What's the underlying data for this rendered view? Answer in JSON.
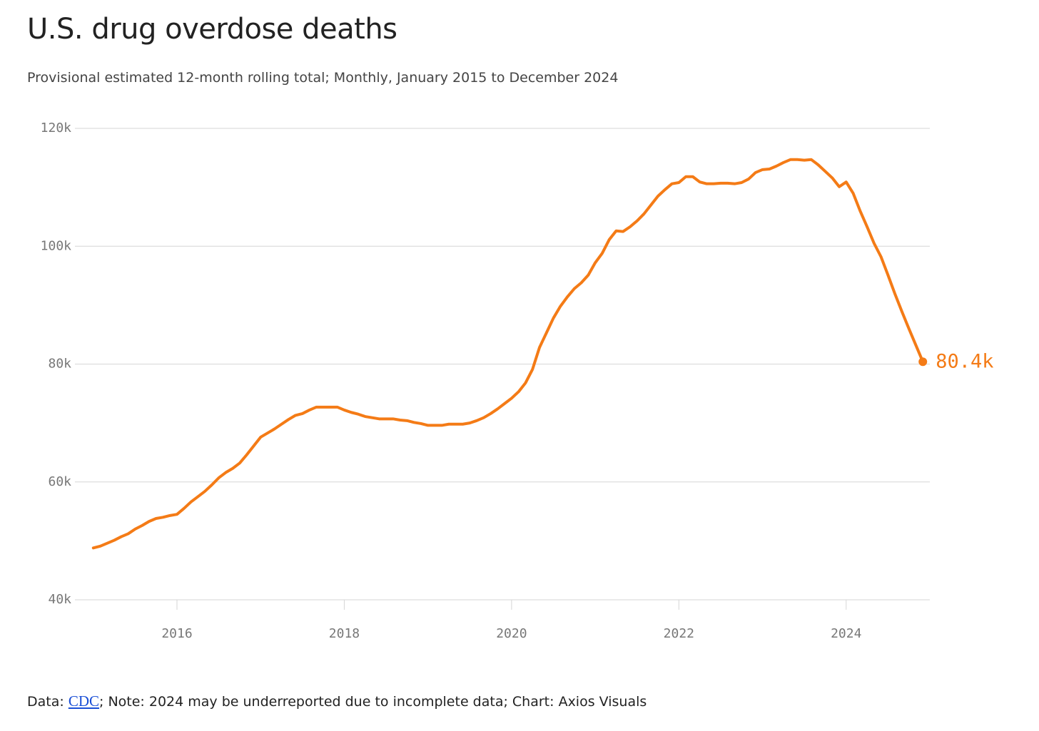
{
  "chart_data": {
    "type": "line",
    "title": "U.S. drug overdose deaths",
    "subtitle": "Provisional estimated 12-month rolling total; Monthly, January 2015 to December 2024",
    "x": [
      "2015-01",
      "2015-02",
      "2015-03",
      "2015-04",
      "2015-05",
      "2015-06",
      "2015-07",
      "2015-08",
      "2015-09",
      "2015-10",
      "2015-11",
      "2015-12",
      "2016-01",
      "2016-02",
      "2016-03",
      "2016-04",
      "2016-05",
      "2016-06",
      "2016-07",
      "2016-08",
      "2016-09",
      "2016-10",
      "2016-11",
      "2016-12",
      "2017-01",
      "2017-02",
      "2017-03",
      "2017-04",
      "2017-05",
      "2017-06",
      "2017-07",
      "2017-08",
      "2017-09",
      "2017-10",
      "2017-11",
      "2017-12",
      "2018-01",
      "2018-02",
      "2018-03",
      "2018-04",
      "2018-05",
      "2018-06",
      "2018-07",
      "2018-08",
      "2018-09",
      "2018-10",
      "2018-11",
      "2018-12",
      "2019-01",
      "2019-02",
      "2019-03",
      "2019-04",
      "2019-05",
      "2019-06",
      "2019-07",
      "2019-08",
      "2019-09",
      "2019-10",
      "2019-11",
      "2019-12",
      "2020-01",
      "2020-02",
      "2020-03",
      "2020-04",
      "2020-05",
      "2020-06",
      "2020-07",
      "2020-08",
      "2020-09",
      "2020-10",
      "2020-11",
      "2020-12",
      "2021-01",
      "2021-02",
      "2021-03",
      "2021-04",
      "2021-05",
      "2021-06",
      "2021-07",
      "2021-08",
      "2021-09",
      "2021-10",
      "2021-11",
      "2021-12",
      "2022-01",
      "2022-02",
      "2022-03",
      "2022-04",
      "2022-05",
      "2022-06",
      "2022-07",
      "2022-08",
      "2022-09",
      "2022-10",
      "2022-11",
      "2022-12",
      "2023-01",
      "2023-02",
      "2023-03",
      "2023-04",
      "2023-05",
      "2023-06",
      "2023-07",
      "2023-08",
      "2023-09",
      "2023-10",
      "2023-11",
      "2023-12",
      "2024-01",
      "2024-02",
      "2024-03",
      "2024-04",
      "2024-05",
      "2024-06",
      "2024-07",
      "2024-08",
      "2024-09",
      "2024-10",
      "2024-11",
      "2024-12"
    ],
    "values": [
      48.8,
      49.1,
      49.6,
      50.1,
      50.7,
      51.2,
      52.0,
      52.6,
      53.3,
      53.8,
      54.0,
      54.3,
      54.5,
      55.5,
      56.6,
      57.5,
      58.4,
      59.5,
      60.7,
      61.6,
      62.3,
      63.2,
      64.6,
      66.1,
      67.6,
      68.3,
      69.0,
      69.8,
      70.6,
      71.3,
      71.6,
      72.2,
      72.7,
      72.7,
      72.7,
      72.7,
      72.2,
      71.8,
      71.5,
      71.1,
      70.9,
      70.7,
      70.7,
      70.7,
      70.5,
      70.4,
      70.1,
      69.9,
      69.6,
      69.6,
      69.6,
      69.8,
      69.8,
      69.8,
      70.0,
      70.4,
      70.9,
      71.6,
      72.4,
      73.3,
      74.2,
      75.3,
      76.8,
      79.1,
      82.8,
      85.3,
      87.8,
      89.8,
      91.4,
      92.8,
      93.8,
      95.1,
      97.2,
      98.8,
      101.1,
      102.6,
      102.5,
      103.3,
      104.3,
      105.5,
      107.0,
      108.5,
      109.6,
      110.6,
      110.8,
      111.8,
      111.8,
      110.9,
      110.6,
      110.6,
      110.7,
      110.7,
      110.6,
      110.8,
      111.4,
      112.5,
      113.0,
      113.1,
      113.6,
      114.2,
      114.7,
      114.7,
      114.6,
      114.7,
      113.8,
      112.7,
      111.6,
      110.1,
      110.9,
      109.0,
      106.0,
      103.3,
      100.5,
      98.2,
      95.1,
      91.9,
      88.9,
      86.0,
      83.2,
      80.4
    ],
    "value_labels": [
      null,
      null,
      null,
      null,
      null,
      null,
      null,
      null,
      null,
      null,
      null,
      null,
      null,
      null,
      null,
      null,
      null,
      null,
      null,
      null,
      null,
      null,
      null,
      null,
      null,
      null,
      null,
      null,
      null,
      null,
      null,
      null,
      null,
      null,
      null,
      null,
      null,
      null,
      null,
      null,
      null,
      null,
      null,
      null,
      null,
      null,
      null,
      null,
      null,
      null,
      null,
      null,
      null,
      null,
      null,
      null,
      null,
      null,
      null,
      null,
      null,
      null,
      null,
      null,
      null,
      null,
      null,
      null,
      null,
      null,
      null,
      null,
      null,
      null,
      null,
      null,
      null,
      null,
      null,
      null,
      null,
      null,
      null,
      null,
      null,
      null,
      null,
      null,
      null,
      null,
      null,
      null,
      null,
      null,
      null,
      null,
      null,
      null,
      null,
      null,
      null,
      null,
      null,
      null,
      null,
      null,
      null,
      null,
      null,
      null,
      null,
      null,
      null,
      null,
      null,
      null,
      null,
      null,
      null,
      "80.4k"
    ],
    "color": "#f47b16",
    "xlim": [
      2014.78,
      2025.0
    ],
    "xticks": [
      2016,
      2018,
      2020,
      2022,
      2024
    ],
    "ylim": [
      40,
      120
    ],
    "yticks": [
      {
        "value": 40,
        "label": "40k"
      },
      {
        "value": 60,
        "label": "60k"
      },
      {
        "value": 80,
        "label": "80k"
      },
      {
        "value": 100,
        "label": "100k"
      },
      {
        "value": 120,
        "label": "120k"
      }
    ],
    "grid": true,
    "footer": {
      "label": "Data:",
      "link": "CDC",
      "text": "; Note: 2024 may be underreported due to incomplete data; Chart: Axios Visuals"
    }
  }
}
